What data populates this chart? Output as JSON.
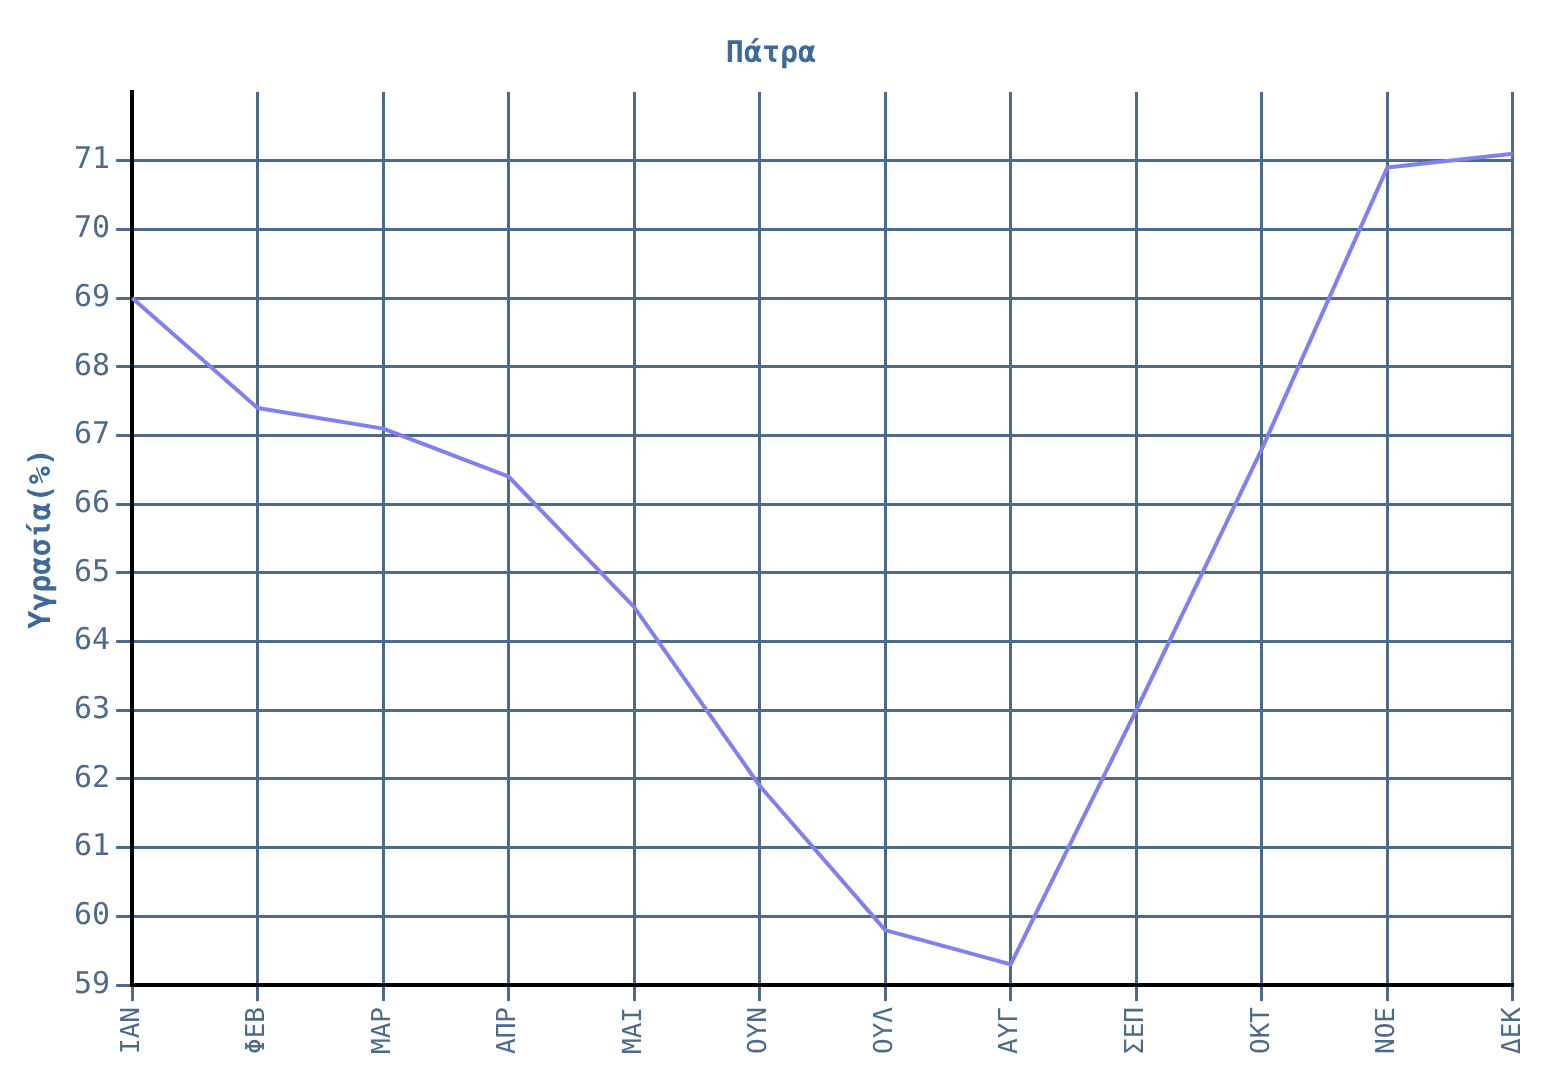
{
  "chart_data": {
    "type": "line",
    "title": "Πάτρα",
    "ylabel": "Υγρασία(%)",
    "categories": [
      "ΙΑΝ",
      "ΦΕΒ",
      "ΜΑΡ",
      "ΑΠΡ",
      "ΜΑΙ",
      "ΟΥΝ",
      "ΟΥΛ",
      "ΑΥΓ",
      "ΣΕΠ",
      "ΟΚΤ",
      "ΝΟΕ",
      "ΔΕΚ"
    ],
    "series": [
      {
        "color": "#8080f0",
        "values": [
          69.0,
          67.4,
          67.1,
          66.4,
          64.5,
          61.9,
          59.8,
          59.3,
          63.0,
          66.8,
          70.9,
          71.1
        ]
      }
    ],
    "ylim": [
      59,
      72
    ],
    "yticks": [
      59,
      60,
      61,
      62,
      63,
      64,
      65,
      66,
      67,
      68,
      69,
      70,
      71
    ],
    "grid": true,
    "legend": false,
    "marker": "none",
    "line_style": "solid"
  }
}
